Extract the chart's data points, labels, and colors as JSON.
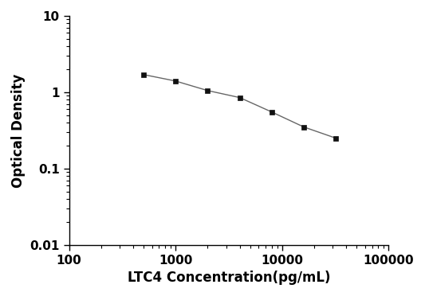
{
  "x": [
    500,
    1000,
    2000,
    4000,
    8000,
    16000,
    32000
  ],
  "y": [
    1.7,
    1.4,
    1.05,
    0.85,
    0.55,
    0.35,
    0.25
  ],
  "xlim": [
    100,
    100000
  ],
  "ylim": [
    0.01,
    10
  ],
  "xlabel": "LTC4 Concentration(pg/mL)",
  "ylabel": "Optical Density",
  "line_color": "#666666",
  "marker": "s",
  "marker_color": "#111111",
  "marker_size": 5,
  "linewidth": 1.0,
  "background_color": "#ffffff",
  "xticks": [
    100,
    1000,
    10000,
    100000
  ],
  "yticks": [
    0.01,
    0.1,
    1,
    10
  ],
  "xlabel_fontsize": 12,
  "ylabel_fontsize": 12,
  "tick_fontsize": 11
}
